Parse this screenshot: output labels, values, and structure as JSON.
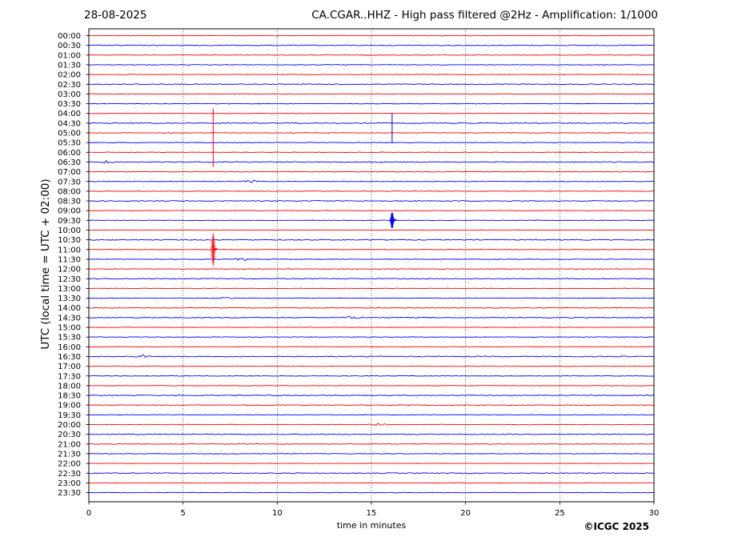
{
  "header": {
    "date": "28-08-2025",
    "title": "CA.CGAR..HHZ - High pass filtered @2Hz - Amplification: 1/1000"
  },
  "footer": {
    "copyright": "©ICGC 2025"
  },
  "chart_data": {
    "type": "line",
    "subtype": "helicorder",
    "xlabel": "time in minutes",
    "ylabel": "UTC (local time = UTC + 02:00)",
    "xlim": [
      0,
      30
    ],
    "x_ticks": [
      0,
      5,
      10,
      15,
      20,
      25,
      30
    ],
    "grid": "vertical dotted lines at x ticks",
    "trace_colors": [
      "#ff0000",
      "#0000ff"
    ],
    "rows": [
      "00:00",
      "00:30",
      "01:00",
      "01:30",
      "02:00",
      "02:30",
      "03:00",
      "03:30",
      "04:00",
      "04:30",
      "05:00",
      "05:30",
      "06:00",
      "06:30",
      "07:00",
      "07:30",
      "08:00",
      "08:30",
      "09:00",
      "09:30",
      "10:00",
      "10:30",
      "11:00",
      "11:30",
      "12:00",
      "12:30",
      "13:00",
      "13:30",
      "14:00",
      "14:30",
      "15:00",
      "15:30",
      "16:00",
      "16:30",
      "17:00",
      "17:30",
      "18:00",
      "18:30",
      "19:00",
      "19:30",
      "20:00",
      "20:30",
      "21:00",
      "21:30",
      "22:00",
      "22:30",
      "23:00",
      "23:30"
    ],
    "events": [
      {
        "row": "11:00",
        "minute": 6.6,
        "color": "#ff0000",
        "row_span": [
          7.5,
          13.5
        ]
      },
      {
        "row": "09:30",
        "minute": 16.1,
        "color": "#0000ff",
        "row_span": [
          8.0,
          11.0
        ]
      }
    ],
    "minor_bursts": [
      {
        "row": "13:30",
        "minute": 7.2,
        "color": "#0000ff"
      },
      {
        "row": "14:30",
        "minute": 14.0,
        "color": "#0000ff"
      },
      {
        "row": "11:30",
        "minute": 8.2,
        "color": "#0000ff"
      },
      {
        "row": "07:30",
        "minute": 8.6,
        "color": "#ff0000"
      },
      {
        "row": "06:30",
        "minute": 0.9,
        "color": "#0000ff"
      },
      {
        "row": "16:30",
        "minute": 2.8,
        "color": "#0000ff"
      },
      {
        "row": "20:00",
        "minute": 15.3,
        "color": "#ff0000"
      }
    ]
  }
}
